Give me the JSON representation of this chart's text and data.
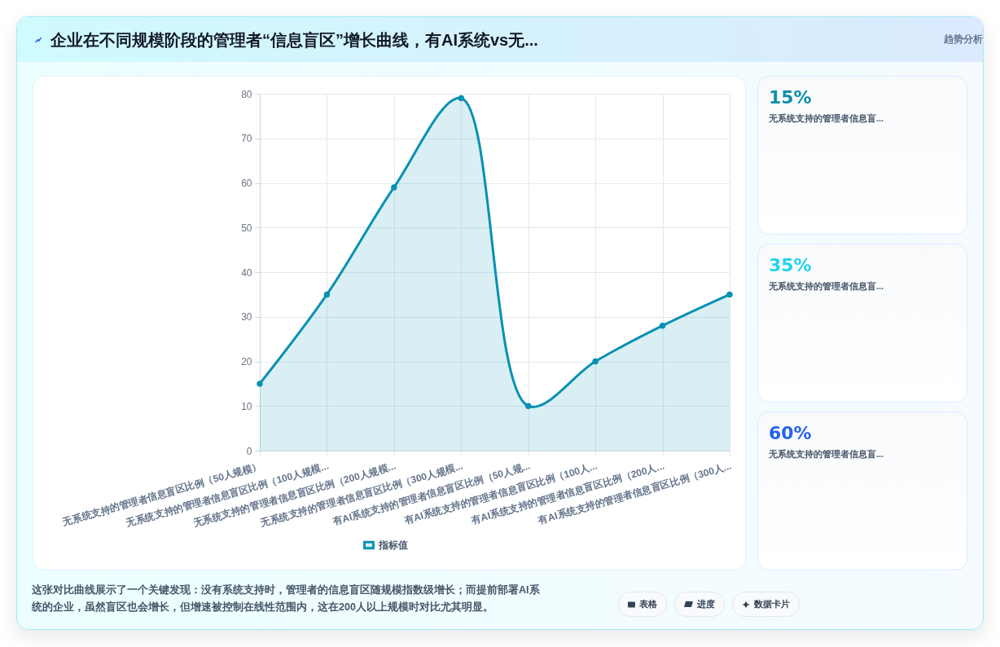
{
  "chart_data": [
    {
      "type": "area",
      "title": "企业在不同规模阶段的管理者“信息盲区”增长曲线，有AI系统vs无...",
      "categories": [
        "无系统支持的管理者信息盲区比例（50人规模）",
        "无系统支持的管理者信息盲区比例（100人规模...",
        "无系统支持的管理者信息盲区比例（200人规模...",
        "无系统支持的管理者信息盲区比例（300人规模...",
        "有AI系统支持的管理者信息盲区比例（50人规...",
        "有AI系统支持的管理者信息盲区比例（100人...",
        "有AI系统支持的管理者信息盲区比例（200人...",
        "有AI系统支持的管理者信息盲区比例（300人..."
      ],
      "series": [
        {
          "name": "指标值",
          "color": "#0891b2",
          "values": [
            15,
            35,
            59,
            79,
            10,
            20,
            28,
            35
          ]
        }
      ],
      "ylim": [
        0,
        80
      ],
      "yticks": [
        0,
        10,
        20,
        30,
        40,
        50,
        60,
        70,
        80
      ],
      "grid": true,
      "legend": "bottom",
      "marker": "circle",
      "annotations": [
        "趋势分析",
        "这张对比曲线展示了一个关键发现：没有系统支持时，管理者的信息盲区随规模指数级增长；而提前部署AI系统的企业，虽然盲区也会增长，但增速被控制在线性范围内，这在200人以上规模时对比尤其明显。",
        "表格",
        "进度",
        "数据卡片"
      ]
    },
    {
      "type": "other",
      "categories": [
        "无系统支持的管理者信息盲...",
        "无系统支持的管理者信息盲...",
        "无系统支持的管理者信息盲..."
      ],
      "value_labels": [
        "15%",
        "35%",
        "60%"
      ]
    }
  ]
}
